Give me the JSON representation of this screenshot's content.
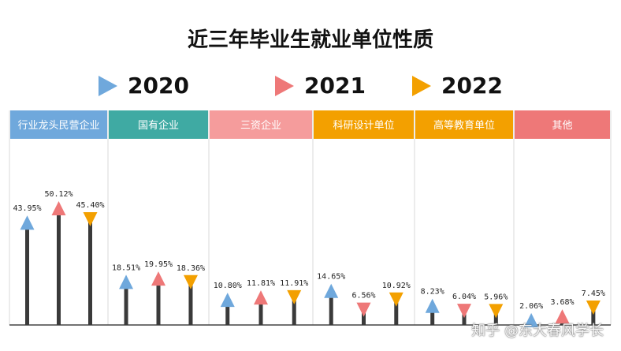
{
  "watermark": "知乎 @东大春风学长",
  "colors": {
    "2020": "#6fa8dc",
    "2021": "#ee7878",
    "2022": "#f3a000",
    "stem": "#3a3a3a",
    "divider": "#d9d9d9"
  },
  "category_colors": [
    "#6fa8dc",
    "#3faaa3",
    "#f59c9c",
    "#f3a000",
    "#f3a000",
    "#ee7878"
  ],
  "chart_data": {
    "type": "bar",
    "title": "近三年毕业生就业单位性质",
    "legend_position": "top",
    "categories": [
      "行业龙头民营企业",
      "国有企业",
      "三资企业",
      "科研设计单位",
      "高等教育单位",
      "其他"
    ],
    "series": [
      {
        "name": "2020",
        "values": [
          43.95,
          18.51,
          10.8,
          14.65,
          8.23,
          2.06
        ],
        "labels": [
          "43.95%",
          "18.51%",
          "10.80%",
          "14.65%",
          "8.23%",
          "2.06%"
        ]
      },
      {
        "name": "2021",
        "values": [
          50.12,
          19.95,
          11.81,
          6.56,
          6.04,
          3.68
        ],
        "labels": [
          "50.12%",
          "19.95%",
          "11.81%",
          "6.56%",
          "6.04%",
          "3.68%"
        ]
      },
      {
        "name": "2022",
        "values": [
          45.4,
          18.36,
          11.91,
          10.92,
          5.96,
          7.45
        ],
        "labels": [
          "45.40%",
          "18.36%",
          "11.91%",
          "10.92%",
          "5.96%",
          "7.45%"
        ]
      }
    ],
    "markers": {
      "2020": "triangle-up",
      "2021": "triangle-up",
      "2022": "triangle-down"
    },
    "overrides": {
      "科研设计单位": {
        "2021": "triangle-down"
      },
      "高等教育单位": {
        "2021": "triangle-down",
        "2022": "triangle-down"
      }
    }
  }
}
